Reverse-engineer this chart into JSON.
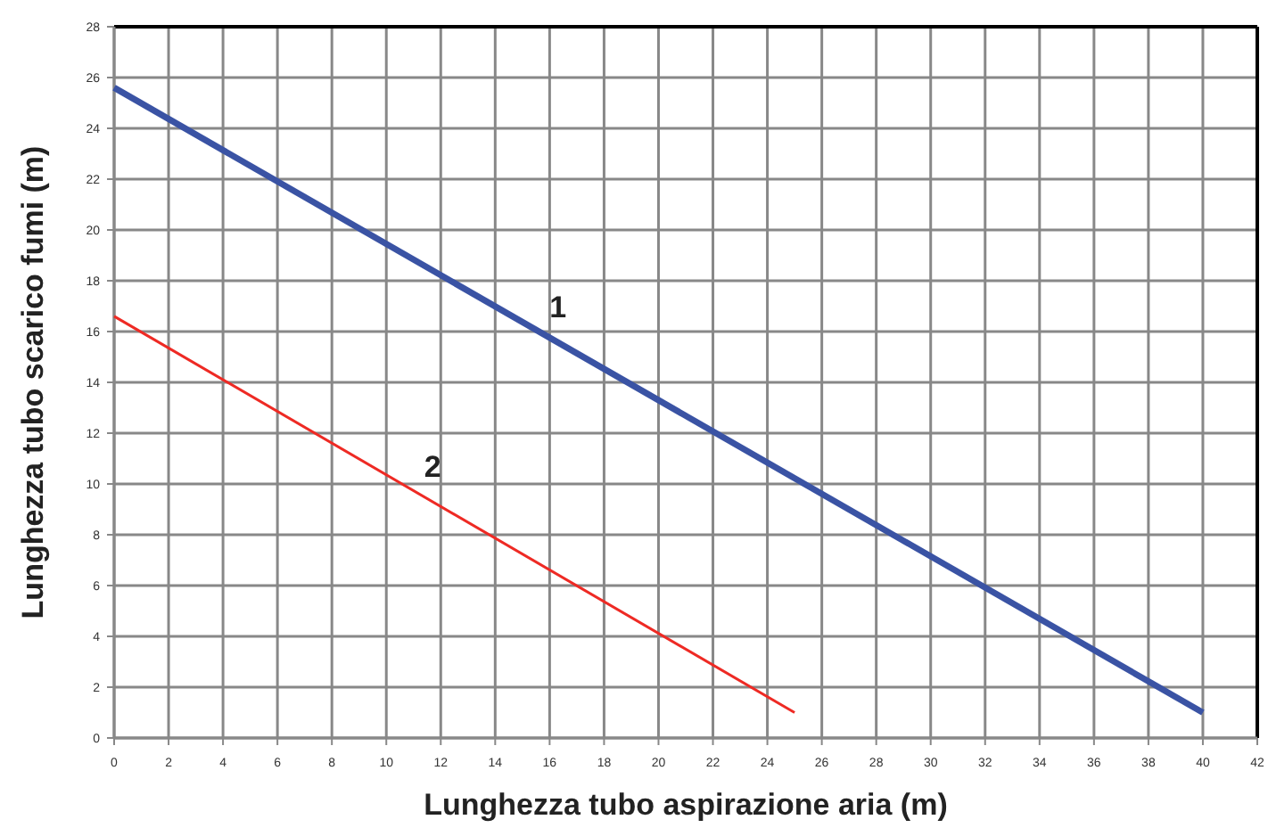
{
  "chart_data": {
    "type": "line",
    "xlabel": "Lunghezza tubo aspirazione aria (m)",
    "ylabel": "Lunghezza tubo scarico fumi (m)",
    "xlim": [
      0,
      42
    ],
    "xticks": [
      0,
      2,
      4,
      6,
      8,
      10,
      12,
      14,
      16,
      18,
      20,
      22,
      24,
      26,
      28,
      30,
      32,
      34,
      36,
      38,
      40,
      42
    ],
    "ylim": [
      0,
      28
    ],
    "yticks": [
      0,
      2,
      4,
      6,
      8,
      10,
      12,
      14,
      16,
      18,
      20,
      22,
      24,
      26,
      28
    ],
    "grid": true,
    "marker": "none",
    "line_style": "solid",
    "series": [
      {
        "name": "1",
        "color": "#3a53a4",
        "x": [
          0,
          40
        ],
        "values": [
          25.6,
          1
        ]
      },
      {
        "name": "2",
        "color": "#ee2a24",
        "x": [
          0,
          25
        ],
        "values": [
          16.6,
          1
        ]
      }
    ]
  }
}
